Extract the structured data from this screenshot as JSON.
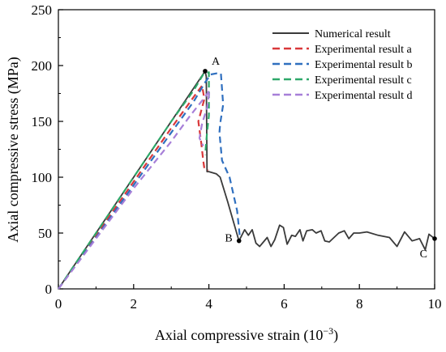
{
  "chart_data": {
    "type": "line",
    "xlabel": "Axial compressive strain (10",
    "xlabel_sup": "−3",
    "xlabel_end": ")",
    "ylabel": "Axial compressive stress (MPa)",
    "xlim": [
      0,
      10
    ],
    "ylim": [
      0,
      250
    ],
    "xticks": [
      "0",
      "2",
      "4",
      "6",
      "8",
      "10"
    ],
    "yticks": [
      "0",
      "50",
      "100",
      "150",
      "200",
      "250"
    ],
    "grid": false,
    "legend_position": "top-right",
    "series": [
      {
        "name": "Numerical result",
        "color": "#3a3a3a",
        "dash": "solid",
        "points": [
          [
            0,
            0
          ],
          [
            0.5,
            25
          ],
          [
            1,
            50
          ],
          [
            1.5,
            75
          ],
          [
            2,
            100
          ],
          [
            2.5,
            125
          ],
          [
            3,
            150
          ],
          [
            3.5,
            175
          ],
          [
            3.9,
            195
          ],
          [
            3.93,
            190
          ],
          [
            3.95,
            105
          ],
          [
            4.0,
            105
          ],
          [
            4.2,
            103
          ],
          [
            4.3,
            100
          ],
          [
            4.5,
            78
          ],
          [
            4.8,
            43
          ],
          [
            4.95,
            53
          ],
          [
            5.05,
            48
          ],
          [
            5.15,
            53
          ],
          [
            5.25,
            41
          ],
          [
            5.35,
            38
          ],
          [
            5.45,
            42
          ],
          [
            5.55,
            46
          ],
          [
            5.65,
            38
          ],
          [
            5.75,
            44
          ],
          [
            5.88,
            57
          ],
          [
            5.98,
            55
          ],
          [
            6.08,
            40
          ],
          [
            6.2,
            48
          ],
          [
            6.3,
            47
          ],
          [
            6.42,
            53
          ],
          [
            6.5,
            43
          ],
          [
            6.6,
            52
          ],
          [
            6.75,
            53
          ],
          [
            6.85,
            50
          ],
          [
            6.98,
            52
          ],
          [
            7.08,
            43
          ],
          [
            7.2,
            42
          ],
          [
            7.45,
            50
          ],
          [
            7.6,
            52
          ],
          [
            7.72,
            45
          ],
          [
            7.85,
            50
          ],
          [
            8.0,
            50
          ],
          [
            8.2,
            51
          ],
          [
            8.5,
            48
          ],
          [
            8.8,
            46
          ],
          [
            9.0,
            38
          ],
          [
            9.2,
            51
          ],
          [
            9.4,
            43
          ],
          [
            9.6,
            45
          ],
          [
            9.75,
            35
          ],
          [
            9.85,
            49
          ],
          [
            10,
            45
          ]
        ]
      },
      {
        "name": "Experimental result a",
        "color": "#d9383a",
        "dash": "dashed",
        "points": [
          [
            0,
            0
          ],
          [
            1,
            48
          ],
          [
            2,
            96
          ],
          [
            3,
            144
          ],
          [
            3.6,
            172
          ],
          [
            3.82,
            182
          ],
          [
            3.88,
            170
          ],
          [
            3.72,
            150
          ],
          [
            3.8,
            130
          ],
          [
            3.85,
            115
          ],
          [
            3.88,
            108
          ],
          [
            3.98,
            106
          ]
        ]
      },
      {
        "name": "Experimental result b",
        "color": "#2f6fbf",
        "dash": "dashed",
        "points": [
          [
            0,
            0
          ],
          [
            1,
            46
          ],
          [
            2,
            93
          ],
          [
            3,
            140
          ],
          [
            3.6,
            168
          ],
          [
            3.9,
            185
          ],
          [
            4.05,
            192
          ],
          [
            4.2,
            193
          ],
          [
            4.32,
            193
          ],
          [
            4.38,
            165
          ],
          [
            4.3,
            148
          ],
          [
            4.28,
            140
          ],
          [
            4.35,
            115
          ],
          [
            4.55,
            100
          ],
          [
            4.75,
            70
          ],
          [
            4.82,
            48
          ]
        ]
      },
      {
        "name": "Experimental result c",
        "color": "#2ea86a",
        "dash": "dashed",
        "points": [
          [
            0,
            0
          ],
          [
            1,
            50
          ],
          [
            2,
            100
          ],
          [
            3,
            150
          ],
          [
            3.6,
            178
          ],
          [
            3.85,
            192
          ],
          [
            4.0,
            194
          ],
          [
            4.0,
            155
          ],
          [
            3.95,
            140
          ],
          [
            3.9,
            120
          ]
        ]
      },
      {
        "name": "Experimental result d",
        "color": "#a77fd8",
        "dash": "dashed",
        "points": [
          [
            0,
            0
          ],
          [
            1,
            45
          ],
          [
            2,
            90
          ],
          [
            3,
            132
          ],
          [
            3.5,
            155
          ],
          [
            3.9,
            172
          ],
          [
            4.02,
            178
          ],
          [
            3.95,
            162
          ],
          [
            3.82,
            148
          ],
          [
            3.75,
            135
          ],
          [
            3.85,
            128
          ]
        ]
      }
    ],
    "markers": [
      {
        "label": "A",
        "x": 3.9,
        "y": 195
      },
      {
        "label": "B",
        "x": 4.8,
        "y": 43
      },
      {
        "label": "C",
        "x": 10,
        "y": 45
      }
    ]
  }
}
